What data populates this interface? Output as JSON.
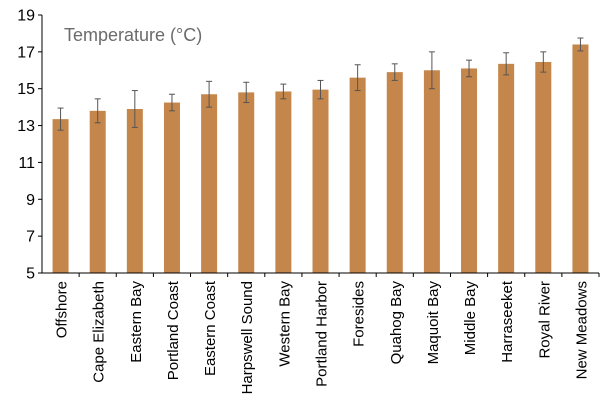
{
  "chart_data": {
    "type": "bar",
    "title": "Temperature (°C)",
    "xlabel": "",
    "ylabel": "",
    "ylim": [
      5,
      19
    ],
    "yticks": [
      5,
      7,
      9,
      11,
      13,
      15,
      17,
      19
    ],
    "grid": false,
    "legend": "none",
    "bar_color": "#c4864a",
    "error_color": "#555555",
    "categories": [
      "Offshore",
      "Cape Elizabeth",
      "Eastern Bay",
      "Portland Coast",
      "Eastern Coast",
      "Harpswell Sound",
      "Western Bay",
      "Portland Harbor",
      "Foresides",
      "Quahog Bay",
      "Maquoit Bay",
      "Middle Bay",
      "Harraseeket",
      "Royal River",
      "New Meadows"
    ],
    "values": [
      13.35,
      13.8,
      13.9,
      14.25,
      14.7,
      14.8,
      14.85,
      14.95,
      15.6,
      15.9,
      16.0,
      16.1,
      16.35,
      16.45,
      17.4
    ],
    "errors": [
      0.6,
      0.65,
      1.0,
      0.45,
      0.7,
      0.55,
      0.4,
      0.5,
      0.7,
      0.45,
      1.0,
      0.45,
      0.6,
      0.55,
      0.35
    ]
  }
}
